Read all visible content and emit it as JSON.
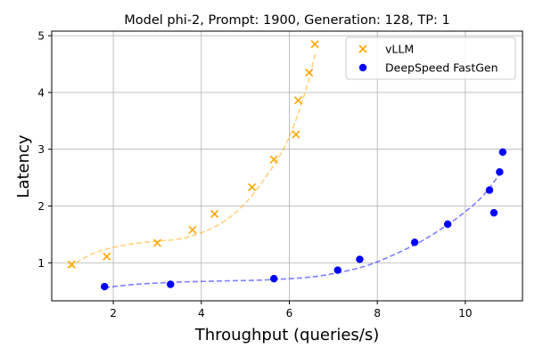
{
  "chart_data": {
    "type": "scatter",
    "title": "Model phi-2, Prompt: 1900, Generation: 128, TP: 1",
    "xlabel": "Throughput (queries/s)",
    "ylabel": "Latency",
    "xlim": [
      0.6,
      11.3
    ],
    "ylim": [
      0.33,
      5.08
    ],
    "xticks": [
      2,
      4,
      6,
      8,
      10
    ],
    "yticks": [
      1,
      2,
      3,
      4,
      5
    ],
    "grid": true,
    "legend_position": "top-right",
    "series": [
      {
        "name": "vLLM",
        "marker": "x",
        "color": "#FFA500",
        "points": [
          [
            1.05,
            0.97
          ],
          [
            1.85,
            1.11
          ],
          [
            3.0,
            1.35
          ],
          [
            3.8,
            1.58
          ],
          [
            4.3,
            1.86
          ],
          [
            5.15,
            2.33
          ],
          [
            5.65,
            2.82
          ],
          [
            6.15,
            3.26
          ],
          [
            6.2,
            3.86
          ],
          [
            6.45,
            4.35
          ],
          [
            6.58,
            4.85
          ]
        ],
        "trend": [
          [
            1.0,
            0.92
          ],
          [
            1.5,
            1.15
          ],
          [
            2.0,
            1.27
          ],
          [
            2.5,
            1.34
          ],
          [
            3.0,
            1.38
          ],
          [
            3.5,
            1.42
          ],
          [
            4.0,
            1.53
          ],
          [
            4.5,
            1.72
          ],
          [
            5.0,
            2.05
          ],
          [
            5.5,
            2.55
          ],
          [
            5.9,
            3.05
          ],
          [
            6.2,
            3.62
          ],
          [
            6.45,
            4.25
          ],
          [
            6.6,
            4.72
          ]
        ]
      },
      {
        "name": "DeepSpeed FastGen",
        "marker": "o",
        "color": "#0000FF",
        "points": [
          [
            1.8,
            0.58
          ],
          [
            3.3,
            0.62
          ],
          [
            5.65,
            0.72
          ],
          [
            7.1,
            0.87
          ],
          [
            7.6,
            1.06
          ],
          [
            8.85,
            1.36
          ],
          [
            9.6,
            1.68
          ],
          [
            10.55,
            2.28
          ],
          [
            10.65,
            1.88
          ],
          [
            10.78,
            2.6
          ],
          [
            10.85,
            2.95
          ]
        ],
        "trend": [
          [
            1.8,
            0.56
          ],
          [
            2.5,
            0.62
          ],
          [
            3.5,
            0.66
          ],
          [
            4.5,
            0.68
          ],
          [
            5.5,
            0.7
          ],
          [
            6.5,
            0.75
          ],
          [
            7.2,
            0.84
          ],
          [
            7.8,
            0.96
          ],
          [
            8.4,
            1.15
          ],
          [
            9.0,
            1.38
          ],
          [
            9.5,
            1.62
          ],
          [
            10.0,
            1.9
          ],
          [
            10.4,
            2.18
          ],
          [
            10.8,
            2.58
          ]
        ]
      }
    ]
  }
}
